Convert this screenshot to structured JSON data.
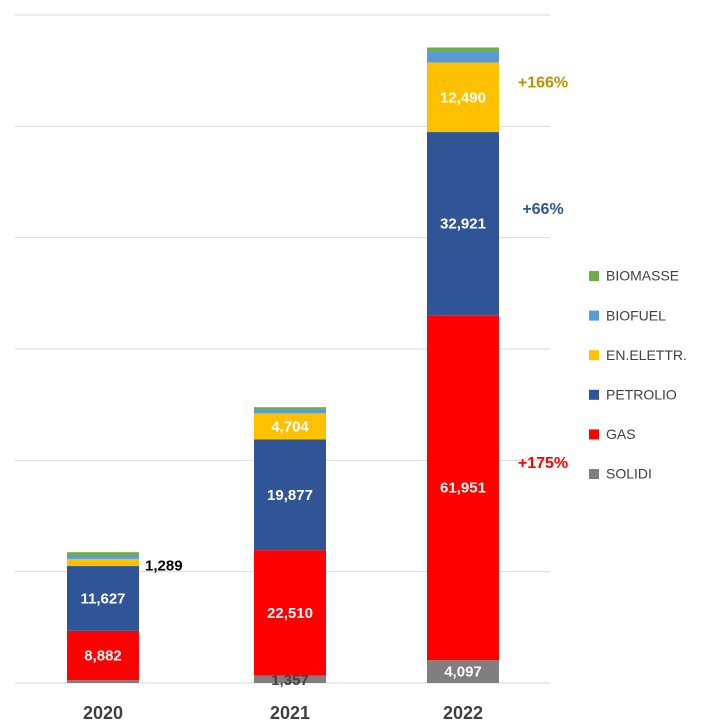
{
  "chart_data": {
    "type": "stacked_bar",
    "categories": [
      "2020",
      "2021",
      "2022"
    ],
    "series": [
      {
        "name": "SOLIDI",
        "color": "#7f7f7f",
        "values": [
          500,
          1357,
          4097
        ],
        "value_labels": [
          null,
          "1,357",
          "4,097"
        ]
      },
      {
        "name": "GAS",
        "color": "#ff0000",
        "values": [
          8882,
          22510,
          61951
        ],
        "value_labels": [
          "8,882",
          "22,510",
          "61,951"
        ]
      },
      {
        "name": "PETROLIO",
        "color": "#2f5597",
        "values": [
          11627,
          19877,
          32921
        ],
        "value_labels": [
          "11,627",
          "19,877",
          "32,921"
        ]
      },
      {
        "name": "EN.ELETTR.",
        "color": "#ffc000",
        "values": [
          1289,
          4704,
          12490
        ],
        "value_labels": [
          "1,289",
          "4,704",
          "12,490"
        ]
      },
      {
        "name": "BIOFUEL",
        "color": "#5b9bd5",
        "values": [
          700,
          600,
          2000
        ],
        "value_labels": [
          null,
          null,
          null
        ]
      },
      {
        "name": "BIOMASSE",
        "color": "#70ad47",
        "values": [
          500,
          500,
          700
        ],
        "value_labels": [
          null,
          null,
          null
        ]
      }
    ],
    "annotations": [
      {
        "text": "+166%",
        "color": "#bf9000"
      },
      {
        "text": "+66%",
        "color": "#2f5597"
      },
      {
        "text": "+175%",
        "color": "#ff0000"
      }
    ],
    "ylim": [
      0,
      120000
    ],
    "yticks": [
      0,
      20000,
      40000,
      60000,
      80000,
      100000,
      120000
    ],
    "grid": true,
    "legend": "right"
  }
}
